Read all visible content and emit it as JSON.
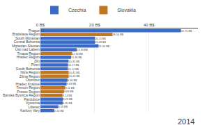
{
  "chart_data": {
    "type": "bar",
    "orientation": "horizontal",
    "title": "2014",
    "categories": [
      "Prague",
      "Bratislava Region",
      "South Moravian",
      "Central Bohemia",
      "Moravian-Silesian",
      "Ústí nad Labem",
      "Trnava Region",
      "Hradec Region",
      "Zlin",
      "Plzen",
      "South Bohemia",
      "Nitra Region",
      "Zilina Region",
      "Olomouc",
      "Hradec Kralove",
      "Trencin Region",
      "Presov Region",
      "Banska Bystrica Region",
      "Pardubice",
      "Vysocina",
      "Liberec",
      "Karlovy Vary"
    ],
    "series": [
      {
        "name": "Czechia",
        "color": "#3a6bc8",
        "values": [
          51.75,
          null,
          20.11,
          20.09,
          21.4,
          13.36,
          null,
          11.3,
          10.35,
          10.17,
          10.12,
          null,
          null,
          9.96,
          9.63,
          null,
          null,
          null,
          8.29,
          8.2,
          6.53,
          5.1
        ],
        "value_labels": [
          "51.75 B$",
          null,
          "20.11 B$",
          "20.09 B$",
          "21.40 B$",
          "13.36 B$",
          null,
          "11.30 B$",
          "10.35 B$",
          "10.17 B$",
          "10.12 B$",
          null,
          null,
          "9.96 B$",
          "9.63 B$",
          null,
          null,
          null,
          "8.29 B$",
          "8.20 B$",
          "6.53 B$",
          "5.10 B$"
        ]
      },
      {
        "name": "Slovakia",
        "color": "#c07820",
        "values": [
          null,
          26.54,
          null,
          null,
          null,
          null,
          11.63,
          null,
          null,
          null,
          null,
          10.41,
          10.43,
          null,
          null,
          9.11,
          8.69,
          8.14,
          null,
          null,
          null,
          null
        ],
        "value_labels": [
          null,
          "26.54 B$",
          null,
          null,
          null,
          null,
          "11.63 B$",
          null,
          null,
          null,
          null,
          "10.41 B$",
          "10.43 B$",
          null,
          null,
          "9.11 B$",
          "8.69 B$",
          "8.14 B$",
          null,
          null,
          null,
          null
        ]
      }
    ],
    "xlim": [
      0,
      58
    ],
    "xticks": [
      {
        "value": 0,
        "label": "0 B$"
      },
      {
        "value": 20,
        "label": "20 B$"
      },
      {
        "value": 40,
        "label": "40 B$"
      }
    ],
    "grid": true,
    "data_labels": true,
    "legend": "top-left"
  }
}
